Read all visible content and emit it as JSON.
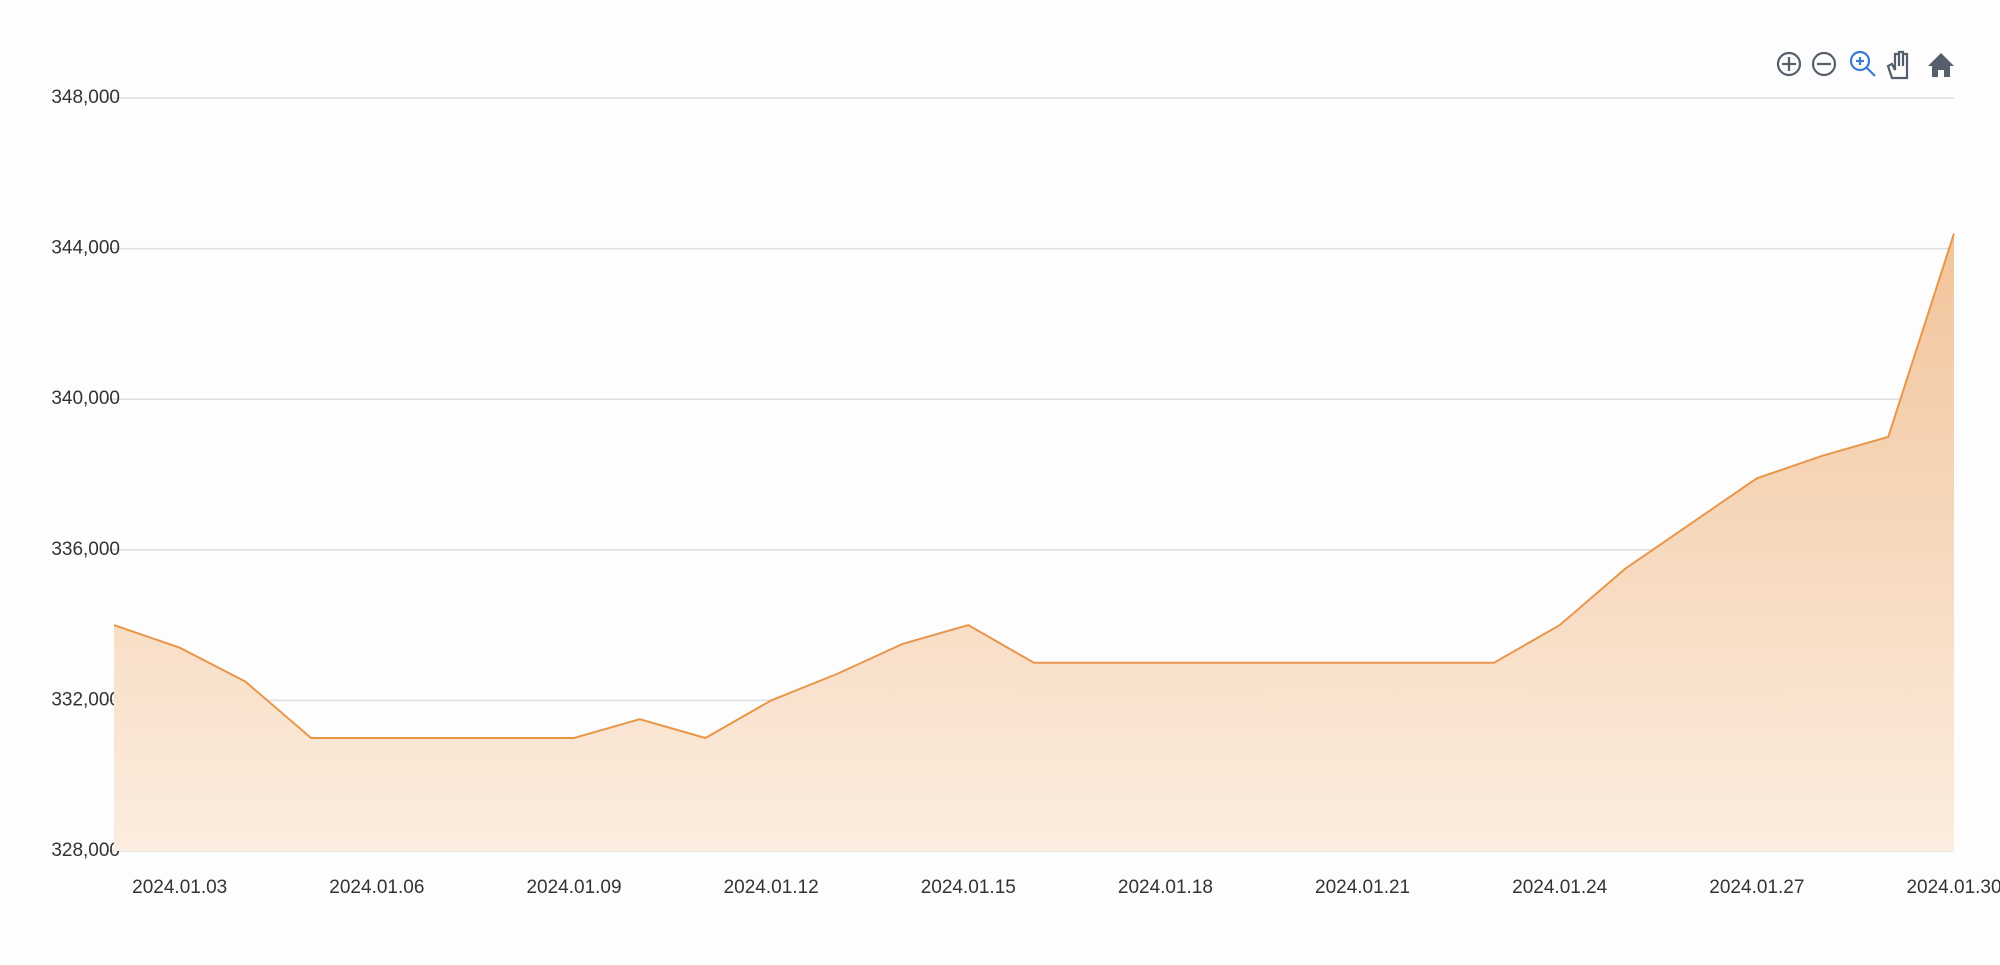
{
  "chart_data": {
    "type": "area",
    "x": [
      "2024.01.02",
      "2024.01.03",
      "2024.01.04",
      "2024.01.05",
      "2024.01.06",
      "2024.01.07",
      "2024.01.08",
      "2024.01.09",
      "2024.01.10",
      "2024.01.11",
      "2024.01.12",
      "2024.01.13",
      "2024.01.14",
      "2024.01.15",
      "2024.01.16",
      "2024.01.17",
      "2024.01.18",
      "2024.01.19",
      "2024.01.20",
      "2024.01.21",
      "2024.01.22",
      "2024.01.23",
      "2024.01.24",
      "2024.01.25",
      "2024.01.26",
      "2024.01.27",
      "2024.01.28",
      "2024.01.29",
      "2024.01.30"
    ],
    "series": [
      {
        "color": "#e8974a",
        "values": [
          334000,
          333400,
          332500,
          331000,
          331000,
          331000,
          331000,
          331000,
          331500,
          331000,
          332000,
          332700,
          333500,
          334000,
          333000,
          333000,
          333000,
          333000,
          333000,
          333000,
          333000,
          333000,
          334000,
          335500,
          336700,
          337900,
          338500,
          339000,
          344400
        ]
      }
    ],
    "xlim": [
      "2024.01.02",
      "2024.01.30"
    ],
    "xticks": [
      "2024.01.03",
      "2024.01.06",
      "2024.01.09",
      "2024.01.12",
      "2024.01.15",
      "2024.01.18",
      "2024.01.21",
      "2024.01.24",
      "2024.01.27",
      "2024.01.30"
    ],
    "ylim": [
      328000,
      348000
    ],
    "yticks": [
      {
        "value": 328000,
        "label": "328,000"
      },
      {
        "value": 332000,
        "label": "332,000"
      },
      {
        "value": 336000,
        "label": "336,000"
      },
      {
        "value": 340000,
        "label": "340,000"
      },
      {
        "value": 344000,
        "label": "344,000"
      },
      {
        "value": 348000,
        "label": "348,000"
      }
    ],
    "grid": true
  }
}
